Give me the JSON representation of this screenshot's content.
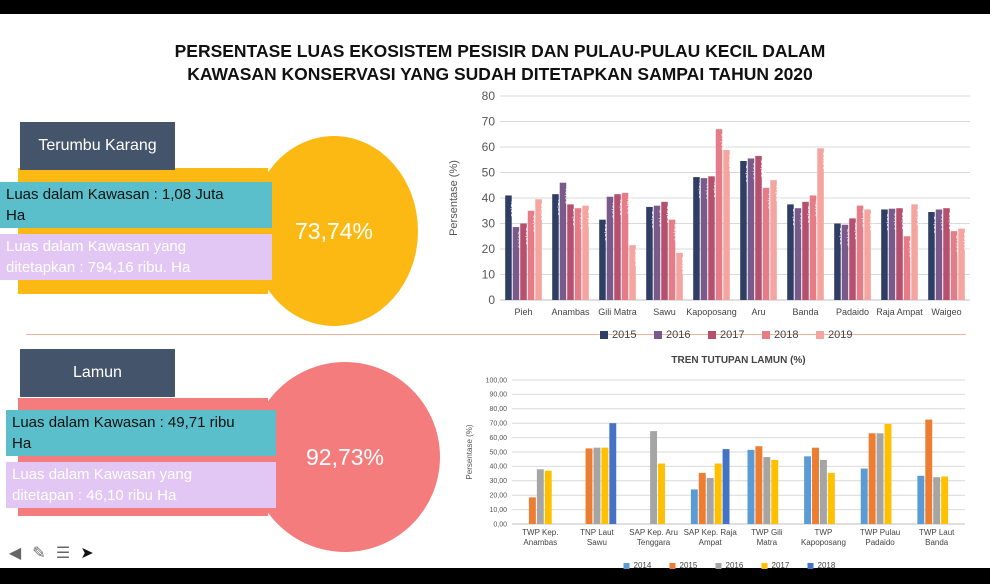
{
  "title_line1": "PERSENTASE LUAS EKOSISTEM PESISIR DAN PULAU-PULAU KECIL DALAM",
  "title_line2": "KAWASAN KONSERVASI YANG SUDAH DITETAPKAN SAMPAI TAHUN 2020",
  "terumbu": {
    "label": "Terumbu Karang",
    "percent": "73,74%",
    "luas_line1": "Luas dalam Kawasan : 1,08 Juta",
    "luas_line2": "Ha",
    "tetap_line1": "Luas dalam Kawasan yang",
    "tetap_line2": "ditetapkan : 794,16 ribu. Ha",
    "color": "#fdb913"
  },
  "lamun": {
    "label": "Lamun",
    "percent": "92,73%",
    "luas_line1": "Luas dalam Kawasan : 49,71 ribu",
    "luas_line2": "Ha",
    "tetap_line1": "Luas dalam Kawasan yang",
    "tetap_line2": "ditetapan : 46,10 ribu  Ha",
    "color": "#f47c7c"
  },
  "toolbar": [
    "arrow-left-icon",
    "pen-icon",
    "menu-icon",
    "pointer-icon"
  ],
  "chart_data": [
    {
      "type": "bar",
      "title": "",
      "xlabel": "",
      "ylabel": "Persentase (%)",
      "ylim": [
        0,
        80
      ],
      "yticks": [
        0,
        10,
        20,
        30,
        40,
        50,
        60,
        70,
        80
      ],
      "grid": true,
      "legend": "bottom",
      "categories": [
        "Pieh",
        "Anambas",
        "Gili Matra",
        "Sawu",
        "Kapoposang",
        "Aru",
        "Banda",
        "Padaido",
        "Raja Ampat",
        "Waigeo"
      ],
      "series": [
        {
          "name": "2015",
          "color": "#2f3e64",
          "values": [
            41,
            41.5,
            31.5,
            36.5,
            48.2,
            54.5,
            37.5,
            30,
            35.5,
            34.5
          ]
        },
        {
          "name": "2016",
          "color": "#7a5a8a",
          "values": [
            28.6,
            46,
            40.5,
            37,
            47.8,
            55.5,
            36,
            29.5,
            35.8,
            35.5
          ]
        },
        {
          "name": "2017",
          "color": "#b5506e",
          "values": [
            30,
            37.5,
            41.5,
            38.5,
            48.5,
            56.5,
            38.5,
            32,
            36,
            36
          ]
        },
        {
          "name": "2018",
          "color": "#e67c87",
          "values": [
            35,
            36,
            42,
            31.5,
            67,
            44,
            41,
            37,
            25,
            27
          ]
        },
        {
          "name": "2019",
          "color": "#f5a5a0",
          "values": [
            39.5,
            37,
            21.5,
            18.5,
            58.8,
            47,
            59.5,
            35.5,
            37.5,
            28
          ]
        }
      ]
    },
    {
      "type": "bar",
      "title": "TREN TUTUPAN LAMUN (%)",
      "xlabel": "",
      "ylabel": "Persentase (%)",
      "ylim": [
        0,
        100
      ],
      "yticks": [
        "0,00",
        "10,00",
        "20,00",
        "30,00",
        "40,00",
        "50,00",
        "60,00",
        "70,00",
        "80,00",
        "90,00",
        "100,00"
      ],
      "grid": true,
      "legend": "bottom",
      "categories": [
        [
          "TWP Kep.",
          "Anambas"
        ],
        [
          "TNP Laut",
          "Sawu"
        ],
        [
          "SAP Kep. Aru",
          "Tenggara"
        ],
        [
          "SAP Kep. Raja",
          "Ampat"
        ],
        [
          "TWP Gili",
          "Matra"
        ],
        [
          "TWP",
          "Kapoposang"
        ],
        [
          "TWP Pulau",
          "Padaido"
        ],
        [
          "TWP Laut",
          "Banda"
        ]
      ],
      "series": [
        {
          "name": "2014",
          "color": "#5b9bd5",
          "values": [
            null,
            null,
            null,
            24,
            51.5,
            47,
            38.5,
            33.5
          ]
        },
        {
          "name": "2015",
          "color": "#ed7d31",
          "values": [
            18.5,
            52.5,
            null,
            35.5,
            54,
            53,
            63,
            72.5
          ]
        },
        {
          "name": "2016",
          "color": "#a5a5a5",
          "values": [
            38,
            53,
            64.5,
            32,
            46.5,
            44.5,
            63,
            32.5
          ]
        },
        {
          "name": "2017",
          "color": "#ffc000",
          "values": [
            37,
            53,
            42,
            42,
            44.5,
            35.5,
            69.5,
            33
          ]
        },
        {
          "name": "2018",
          "color": "#4472c4",
          "values": [
            null,
            70,
            null,
            52,
            null,
            null,
            null,
            null
          ]
        }
      ]
    }
  ]
}
